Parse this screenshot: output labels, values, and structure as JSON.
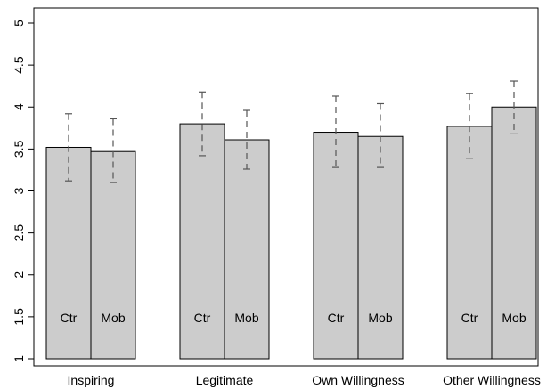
{
  "chart_data": {
    "type": "bar",
    "categories": [
      "Inspiring",
      "Legitimate",
      "Own Willingness",
      "Other Willingness"
    ],
    "bar_labels": [
      "Ctr",
      "Mob"
    ],
    "series": [
      {
        "values": [
          3.52,
          3.8,
          3.7,
          3.77
        ],
        "error_low": [
          3.12,
          3.42,
          3.28,
          3.39
        ],
        "error_high": [
          3.92,
          4.18,
          4.13,
          4.16
        ]
      },
      {
        "values": [
          3.47,
          3.61,
          3.65,
          4.0
        ],
        "error_low": [
          3.1,
          3.26,
          3.28,
          3.68
        ],
        "error_high": [
          3.86,
          3.96,
          4.04,
          4.31
        ]
      }
    ],
    "y_ticks": [
      "1",
      "1.5",
      "2",
      "2.5",
      "3",
      "3.5",
      "4",
      "4.5",
      "5"
    ],
    "ylim": [
      1,
      5
    ],
    "bar_color": "#cccccc",
    "error_bar_style": "dashed"
  }
}
